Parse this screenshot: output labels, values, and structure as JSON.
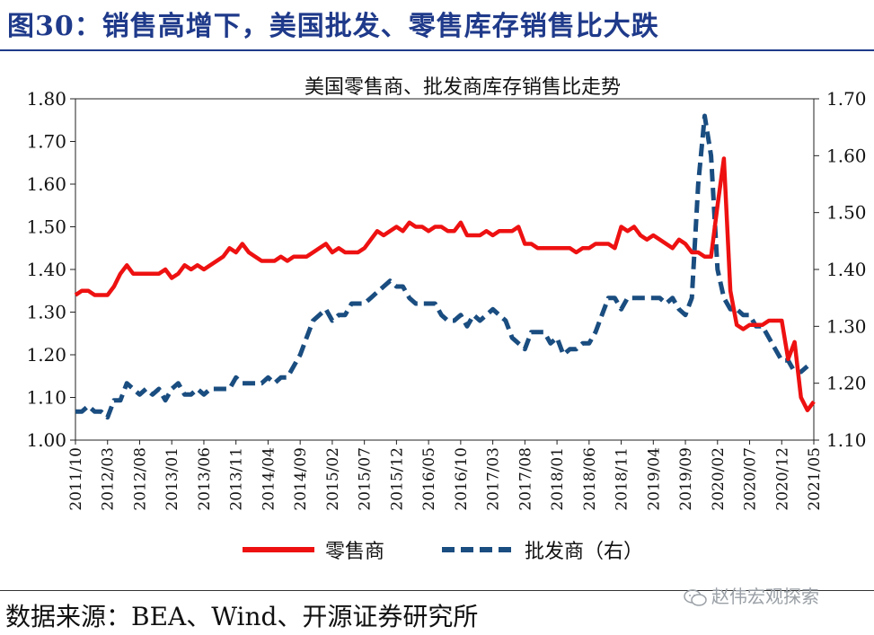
{
  "figure_title": "图30：销售高增下，美国批发、零售库存销售比大跌",
  "source": "数据来源：BEA、Wind、开源证券研究所",
  "watermark": "赵伟宏观探索",
  "colors": {
    "retail": "#ee1111",
    "wholesale": "#1a4d80",
    "title": "#1f3a8a"
  },
  "chart_data": {
    "type": "line",
    "title": "美国零售商、批发商库存销售比走势",
    "x_ticks": [
      "2011/10",
      "2012/03",
      "2012/08",
      "2013/01",
      "2013/06",
      "2013/11",
      "2014/04",
      "2014/09",
      "2015/02",
      "2015/07",
      "2015/12",
      "2016/05",
      "2016/10",
      "2017/03",
      "2017/08",
      "2018/01",
      "2018/06",
      "2018/11",
      "2019/04",
      "2019/09",
      "2020/02",
      "2020/07",
      "2020/12",
      "2021/05"
    ],
    "x_start": "2011/10",
    "x_end": "2021/05",
    "y_left": {
      "range": [
        1.0,
        1.8
      ],
      "ticks": [
        "1.00",
        "1.10",
        "1.20",
        "1.30",
        "1.40",
        "1.50",
        "1.60",
        "1.70",
        "1.80"
      ]
    },
    "y_right": {
      "range": [
        1.1,
        1.7
      ],
      "ticks": [
        "1.10",
        "1.20",
        "1.30",
        "1.40",
        "1.50",
        "1.60",
        "1.70"
      ]
    },
    "legend_position": "bottom",
    "series": [
      {
        "name": "零售商",
        "axis": "left",
        "style": "solid",
        "values": [
          1.34,
          1.35,
          1.35,
          1.34,
          1.34,
          1.34,
          1.36,
          1.39,
          1.41,
          1.39,
          1.39,
          1.39,
          1.39,
          1.39,
          1.4,
          1.38,
          1.39,
          1.41,
          1.4,
          1.41,
          1.4,
          1.41,
          1.42,
          1.43,
          1.45,
          1.44,
          1.46,
          1.44,
          1.43,
          1.42,
          1.42,
          1.42,
          1.43,
          1.42,
          1.43,
          1.43,
          1.43,
          1.44,
          1.45,
          1.46,
          1.44,
          1.45,
          1.44,
          1.44,
          1.44,
          1.45,
          1.47,
          1.49,
          1.48,
          1.49,
          1.5,
          1.49,
          1.51,
          1.5,
          1.5,
          1.49,
          1.5,
          1.5,
          1.49,
          1.49,
          1.51,
          1.48,
          1.48,
          1.48,
          1.49,
          1.48,
          1.49,
          1.49,
          1.49,
          1.5,
          1.46,
          1.46,
          1.45,
          1.45,
          1.45,
          1.45,
          1.45,
          1.45,
          1.44,
          1.45,
          1.45,
          1.46,
          1.46,
          1.46,
          1.45,
          1.5,
          1.49,
          1.5,
          1.48,
          1.47,
          1.48,
          1.47,
          1.46,
          1.45,
          1.47,
          1.46,
          1.44,
          1.44,
          1.43,
          1.43,
          1.55,
          1.66,
          1.35,
          1.27,
          1.26,
          1.27,
          1.27,
          1.27,
          1.28,
          1.28,
          1.28,
          1.19,
          1.23,
          1.1,
          1.07,
          1.09
        ]
      },
      {
        "name": "批发商（右）",
        "axis": "right",
        "style": "dashed",
        "values": [
          1.15,
          1.15,
          1.16,
          1.15,
          1.15,
          1.14,
          1.17,
          1.17,
          1.2,
          1.19,
          1.18,
          1.19,
          1.18,
          1.19,
          1.17,
          1.19,
          1.2,
          1.18,
          1.18,
          1.19,
          1.18,
          1.19,
          1.19,
          1.19,
          1.19,
          1.21,
          1.2,
          1.2,
          1.2,
          1.2,
          1.21,
          1.2,
          1.21,
          1.21,
          1.23,
          1.25,
          1.28,
          1.31,
          1.32,
          1.33,
          1.31,
          1.32,
          1.32,
          1.34,
          1.34,
          1.34,
          1.35,
          1.36,
          1.37,
          1.38,
          1.37,
          1.37,
          1.35,
          1.34,
          1.34,
          1.34,
          1.34,
          1.32,
          1.31,
          1.31,
          1.32,
          1.3,
          1.32,
          1.31,
          1.32,
          1.33,
          1.32,
          1.31,
          1.28,
          1.27,
          1.26,
          1.29,
          1.29,
          1.29,
          1.27,
          1.28,
          1.25,
          1.26,
          1.26,
          1.27,
          1.27,
          1.29,
          1.32,
          1.35,
          1.35,
          1.33,
          1.35,
          1.35,
          1.35,
          1.35,
          1.35,
          1.35,
          1.34,
          1.35,
          1.33,
          1.32,
          1.35,
          1.55,
          1.67,
          1.6,
          1.4,
          1.35,
          1.33,
          1.33,
          1.32,
          1.32,
          1.3,
          1.3,
          1.28,
          1.26,
          1.24,
          1.24,
          1.22,
          1.22,
          1.23
        ]
      }
    ]
  }
}
